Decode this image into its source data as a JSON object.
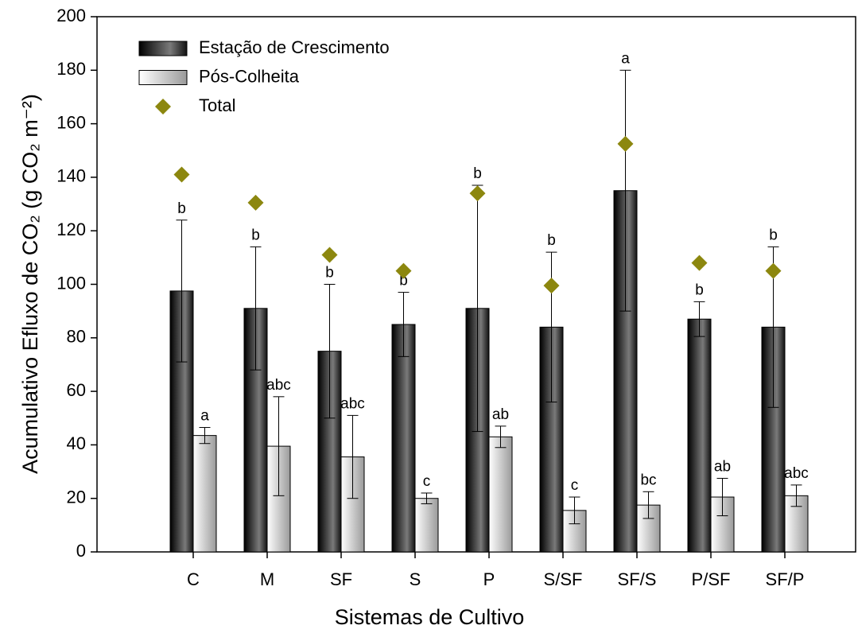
{
  "chart_data": {
    "type": "bar",
    "x_label": "Sistemas de Cultivo",
    "y_label": "Acumulativo Efluxo de CO₂ (g CO₂ m⁻²)",
    "categories": [
      "C",
      "M",
      "SF",
      "S",
      "P",
      "S/SF",
      "SF/S",
      "P/SF",
      "SF/P"
    ],
    "series": [
      {
        "name": "Estação de Crescimento",
        "color": "#7a7a7a",
        "values": [
          97.5,
          91,
          75,
          85,
          91,
          84,
          135,
          87,
          84
        ],
        "errors": [
          26.5,
          23,
          25,
          12,
          46,
          28,
          45,
          6.5,
          30
        ],
        "labels": [
          "b",
          "b",
          "b",
          "b",
          "b",
          "b",
          "a",
          "b",
          "b"
        ]
      },
      {
        "name": "Pós-Colheita",
        "color": "#9a9a9a",
        "values": [
          43.5,
          39.5,
          35.5,
          20,
          43,
          15.5,
          17.5,
          20.5,
          21
        ],
        "errors": [
          3,
          18.5,
          15.5,
          2,
          4,
          5,
          5,
          7,
          4
        ],
        "labels": [
          "a",
          "abc",
          "abc",
          "c",
          "ab",
          "c",
          "bc",
          "ab",
          "abc"
        ]
      },
      {
        "name": "Total",
        "color": "#8c870f",
        "marker": "diamond",
        "values": [
          141,
          130.5,
          111,
          105,
          134,
          99.5,
          152.5,
          108,
          105
        ]
      }
    ],
    "ylim": [
      0,
      200
    ],
    "yticks": [
      0,
      20,
      40,
      60,
      80,
      100,
      120,
      140,
      160,
      180,
      200
    ],
    "grid": false,
    "legend": "upper-left"
  }
}
